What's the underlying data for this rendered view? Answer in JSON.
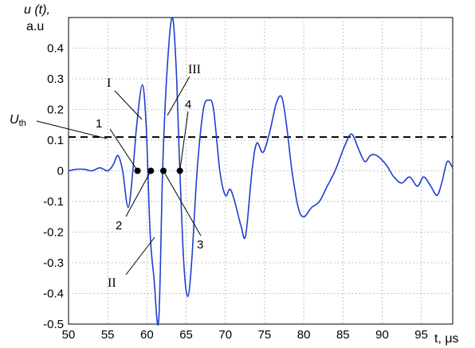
{
  "chart_data": {
    "type": "line",
    "ylabel_line1": "u (t),",
    "ylabel_line2": "a.u",
    "xlabel": "t, μs",
    "xlim": [
      50,
      99
    ],
    "ylim": [
      -0.5,
      0.5
    ],
    "xticks": [
      "50",
      "55",
      "60",
      "65",
      "70",
      "75",
      "80",
      "85",
      "90",
      "95"
    ],
    "xtick_values": [
      50,
      55,
      60,
      65,
      70,
      75,
      80,
      85,
      90,
      95
    ],
    "yticks": [
      "0.4",
      "0.3",
      "0.2",
      "0.1",
      "0",
      "-0.1",
      "-0.2",
      "-0.3",
      "-0.4",
      "-0.5"
    ],
    "ytick_values": [
      0.4,
      0.3,
      0.2,
      0.1,
      0,
      -0.1,
      -0.2,
      -0.3,
      -0.4,
      -0.5
    ],
    "grid": true,
    "threshold": {
      "name": "U",
      "subscript": "th",
      "value": 0.11,
      "style": "dashed"
    },
    "signal": {
      "color": "#1f3fcf",
      "points": [
        [
          50,
          0.0
        ],
        [
          51,
          0.005
        ],
        [
          52,
          0.005
        ],
        [
          53,
          0.0
        ],
        [
          54,
          0.01
        ],
        [
          55,
          0.0
        ],
        [
          55.7,
          0.02
        ],
        [
          56.3,
          0.05
        ],
        [
          56.9,
          0.0
        ],
        [
          57.6,
          -0.12
        ],
        [
          58.2,
          0.0
        ],
        [
          58.7,
          0.15
        ],
        [
          59.4,
          0.28
        ],
        [
          59.9,
          0.15
        ],
        [
          60.4,
          -0.2
        ],
        [
          60.9,
          -0.35
        ],
        [
          61.5,
          -0.49
        ],
        [
          62.0,
          0.0
        ],
        [
          62.5,
          0.3
        ],
        [
          63.2,
          0.5
        ],
        [
          63.7,
          0.35
        ],
        [
          64.2,
          0.0
        ],
        [
          64.7,
          -0.3
        ],
        [
          65.2,
          -0.41
        ],
        [
          65.7,
          -0.3
        ],
        [
          66.4,
          0.0
        ],
        [
          67.2,
          0.2
        ],
        [
          67.9,
          0.23
        ],
        [
          68.5,
          0.2
        ],
        [
          69.3,
          0.0
        ],
        [
          70.0,
          -0.08
        ],
        [
          70.6,
          -0.06
        ],
        [
          71.2,
          -0.1
        ],
        [
          72.0,
          -0.18
        ],
        [
          72.6,
          -0.21
        ],
        [
          73.4,
          0.0
        ],
        [
          74.0,
          0.09
        ],
        [
          74.8,
          0.06
        ],
        [
          75.6,
          0.12
        ],
        [
          76.5,
          0.22
        ],
        [
          77.2,
          0.24
        ],
        [
          77.8,
          0.15
        ],
        [
          78.5,
          0.0
        ],
        [
          79.3,
          -0.12
        ],
        [
          80.0,
          -0.15
        ],
        [
          81.0,
          -0.12
        ],
        [
          82.0,
          -0.1
        ],
        [
          83.0,
          -0.05
        ],
        [
          84.0,
          0.0
        ],
        [
          85.2,
          0.08
        ],
        [
          86.1,
          0.12
        ],
        [
          87.0,
          0.07
        ],
        [
          87.8,
          0.03
        ],
        [
          88.5,
          0.05
        ],
        [
          89.3,
          0.05
        ],
        [
          90.5,
          0.02
        ],
        [
          91.5,
          -0.02
        ],
        [
          92.5,
          -0.04
        ],
        [
          93.5,
          -0.02
        ],
        [
          94.5,
          -0.05
        ],
        [
          95.3,
          -0.02
        ],
        [
          96.2,
          -0.05
        ],
        [
          97.0,
          -0.08
        ],
        [
          97.6,
          -0.04
        ],
        [
          98.3,
          0.03
        ],
        [
          99.0,
          0.01
        ]
      ]
    },
    "crossings": [
      {
        "label": "1",
        "x": 58.8,
        "y": 0
      },
      {
        "label": "2",
        "x": 60.5,
        "y": 0
      },
      {
        "label": "3",
        "x": 62.1,
        "y": 0
      },
      {
        "label": "4",
        "x": 64.2,
        "y": 0
      }
    ],
    "annotations": [
      "I",
      "II",
      "III"
    ]
  }
}
